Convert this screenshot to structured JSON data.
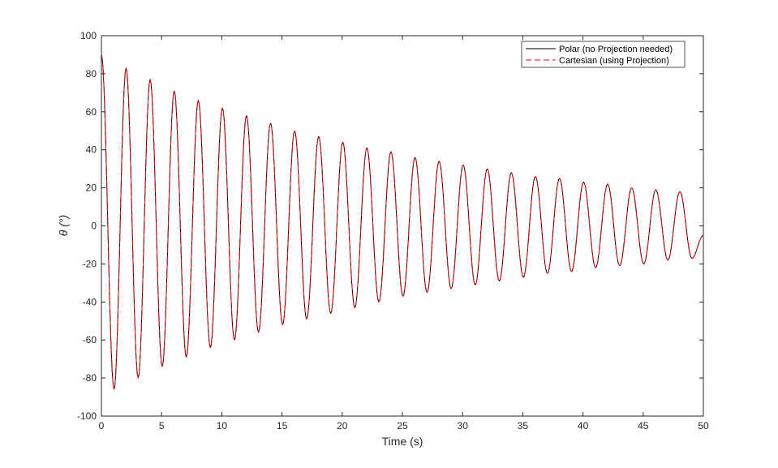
{
  "chart_data": {
    "type": "line",
    "title": "",
    "xlabel": "Time (s)",
    "ylabel": "θ (°)",
    "xlim": [
      0,
      50
    ],
    "ylim": [
      -100,
      100
    ],
    "x_ticks": [
      0,
      5,
      10,
      15,
      20,
      25,
      30,
      35,
      40,
      45,
      50
    ],
    "y_ticks": [
      100,
      80,
      60,
      40,
      20,
      0,
      -20,
      -40,
      -60,
      -80,
      -100
    ],
    "grid": false,
    "legend_position": "top-right",
    "colors": {
      "polar": "#000000",
      "cartesian": "#ff0000",
      "axes": "#262626"
    },
    "series": [
      {
        "name": "Polar (no Projection needed)",
        "style": "solid",
        "color": "#000000",
        "peaks": [
          {
            "t": 0,
            "v": 90
          },
          {
            "t": 1.05,
            "v": -86
          },
          {
            "t": 2.05,
            "v": 83
          },
          {
            "t": 3.05,
            "v": -80
          },
          {
            "t": 4.05,
            "v": 77
          },
          {
            "t": 5.05,
            "v": -74
          },
          {
            "t": 6.05,
            "v": 71
          },
          {
            "t": 7.05,
            "v": -69
          },
          {
            "t": 8.05,
            "v": 66
          },
          {
            "t": 9.05,
            "v": -64
          },
          {
            "t": 10.05,
            "v": 62
          },
          {
            "t": 11.05,
            "v": -60
          },
          {
            "t": 12.05,
            "v": 58
          },
          {
            "t": 13.05,
            "v": -56
          },
          {
            "t": 14.05,
            "v": 54
          },
          {
            "t": 15.05,
            "v": -52
          },
          {
            "t": 16.05,
            "v": 50
          },
          {
            "t": 17.05,
            "v": -49
          },
          {
            "t": 18.05,
            "v": 47
          },
          {
            "t": 19.05,
            "v": -46
          },
          {
            "t": 20.05,
            "v": 44
          },
          {
            "t": 21.05,
            "v": -43
          },
          {
            "t": 22.05,
            "v": 41
          },
          {
            "t": 23.05,
            "v": -40
          },
          {
            "t": 24.05,
            "v": 39
          },
          {
            "t": 25.05,
            "v": -37
          },
          {
            "t": 26.05,
            "v": 36
          },
          {
            "t": 27.05,
            "v": -35
          },
          {
            "t": 28.05,
            "v": 34
          },
          {
            "t": 29.05,
            "v": -33
          },
          {
            "t": 30.05,
            "v": 32
          },
          {
            "t": 31.05,
            "v": -31
          },
          {
            "t": 32.05,
            "v": 30
          },
          {
            "t": 33.05,
            "v": -29
          },
          {
            "t": 34.05,
            "v": 28
          },
          {
            "t": 35.05,
            "v": -27
          },
          {
            "t": 36.05,
            "v": 26
          },
          {
            "t": 37.05,
            "v": -25
          },
          {
            "t": 38.05,
            "v": 25
          },
          {
            "t": 39.05,
            "v": -24
          },
          {
            "t": 40.05,
            "v": 23
          },
          {
            "t": 41.05,
            "v": -22
          },
          {
            "t": 42.05,
            "v": 22
          },
          {
            "t": 43.05,
            "v": -21
          },
          {
            "t": 44.05,
            "v": 20
          },
          {
            "t": 45.05,
            "v": -20
          },
          {
            "t": 46.05,
            "v": 19
          },
          {
            "t": 47.05,
            "v": -18
          },
          {
            "t": 48.05,
            "v": 18
          },
          {
            "t": 49.05,
            "v": -17
          },
          {
            "t": 50,
            "v": -5
          }
        ]
      },
      {
        "name": "Cartesian (using Projection)",
        "style": "dashed",
        "color": "#ff0000",
        "peaks": [
          {
            "t": 0,
            "v": 90
          },
          {
            "t": 1.05,
            "v": -86
          },
          {
            "t": 2.05,
            "v": 83
          },
          {
            "t": 3.05,
            "v": -80
          },
          {
            "t": 4.05,
            "v": 77
          },
          {
            "t": 5.05,
            "v": -74
          },
          {
            "t": 6.05,
            "v": 71
          },
          {
            "t": 7.05,
            "v": -69
          },
          {
            "t": 8.05,
            "v": 66
          },
          {
            "t": 9.05,
            "v": -64
          },
          {
            "t": 10.05,
            "v": 62
          },
          {
            "t": 11.05,
            "v": -60
          },
          {
            "t": 12.05,
            "v": 58
          },
          {
            "t": 13.05,
            "v": -56
          },
          {
            "t": 14.05,
            "v": 54
          },
          {
            "t": 15.05,
            "v": -52
          },
          {
            "t": 16.05,
            "v": 50
          },
          {
            "t": 17.05,
            "v": -49
          },
          {
            "t": 18.05,
            "v": 47
          },
          {
            "t": 19.05,
            "v": -46
          },
          {
            "t": 20.05,
            "v": 44
          },
          {
            "t": 21.05,
            "v": -43
          },
          {
            "t": 22.05,
            "v": 41
          },
          {
            "t": 23.05,
            "v": -40
          },
          {
            "t": 24.05,
            "v": 39
          },
          {
            "t": 25.05,
            "v": -37
          },
          {
            "t": 26.05,
            "v": 36
          },
          {
            "t": 27.05,
            "v": -35
          },
          {
            "t": 28.05,
            "v": 34
          },
          {
            "t": 29.05,
            "v": -33
          },
          {
            "t": 30.05,
            "v": 32
          },
          {
            "t": 31.05,
            "v": -31
          },
          {
            "t": 32.05,
            "v": 30
          },
          {
            "t": 33.05,
            "v": -29
          },
          {
            "t": 34.05,
            "v": 28
          },
          {
            "t": 35.05,
            "v": -27
          },
          {
            "t": 36.05,
            "v": 26
          },
          {
            "t": 37.05,
            "v": -25
          },
          {
            "t": 38.05,
            "v": 25
          },
          {
            "t": 39.05,
            "v": -24
          },
          {
            "t": 40.05,
            "v": 23
          },
          {
            "t": 41.05,
            "v": -22
          },
          {
            "t": 42.05,
            "v": 22
          },
          {
            "t": 43.05,
            "v": -21
          },
          {
            "t": 44.05,
            "v": 20
          },
          {
            "t": 45.05,
            "v": -20
          },
          {
            "t": 46.05,
            "v": 19
          },
          {
            "t": 47.05,
            "v": -18
          },
          {
            "t": 48.05,
            "v": 18
          },
          {
            "t": 49.05,
            "v": -17
          },
          {
            "t": 50,
            "v": -5
          }
        ]
      }
    ]
  }
}
